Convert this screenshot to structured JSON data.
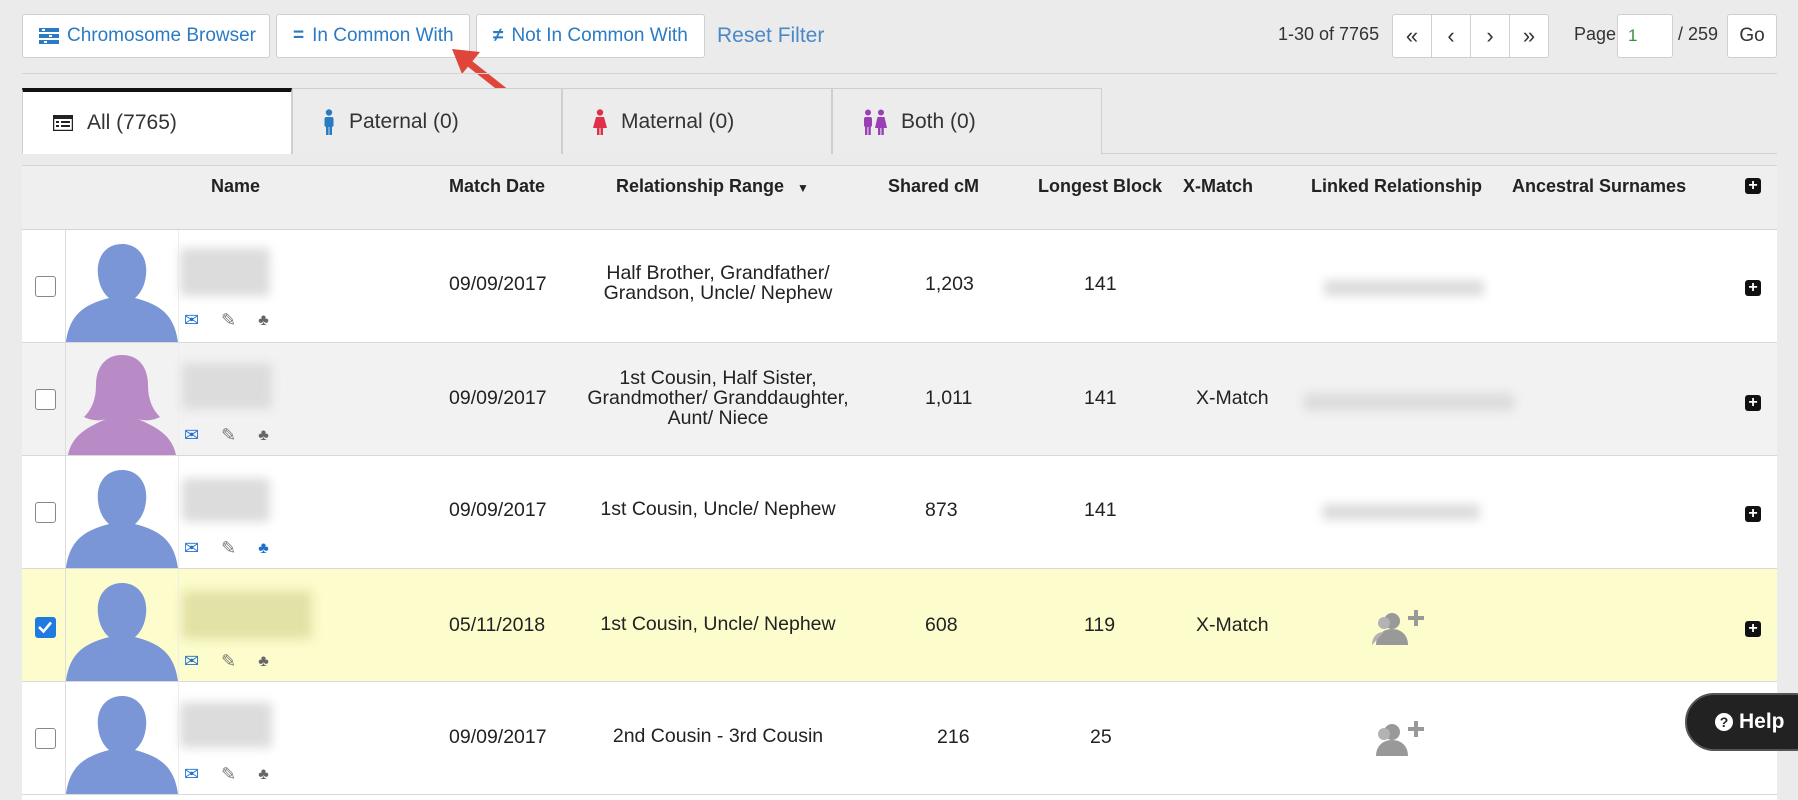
{
  "toolbar": {
    "chromosome_browser": "Chromosome Browser",
    "in_common_with": "In Common With",
    "not_in_common_with": "Not In Common With",
    "reset_filter": "Reset Filter"
  },
  "pagination": {
    "range": "1-30 of 7765",
    "first": "«",
    "prev": "‹",
    "next": "›",
    "last": "»",
    "page_label": "Page",
    "page_value": "1",
    "page_total": "/ 259",
    "go": "Go"
  },
  "tabs": [
    {
      "label": "All (7765)",
      "icon": "list-icon"
    },
    {
      "label": "Paternal (0)",
      "icon": "male-icon"
    },
    {
      "label": "Maternal (0)",
      "icon": "female-icon"
    },
    {
      "label": "Both (0)",
      "icon": "couple-icon"
    }
  ],
  "columns": {
    "name": "Name",
    "match_date": "Match Date",
    "relationship_range": "Relationship Range",
    "shared_cm": "Shared cM",
    "longest_block": "Longest Block",
    "x_match": "X-Match",
    "linked_relationship": "Linked Relationship",
    "ancestral_surnames": "Ancestral Surnames"
  },
  "rows": [
    {
      "checked": false,
      "avatar": "male-avatar",
      "date": "09/09/2017",
      "relationship": "Half Brother, Grandfather/ Grandson, Uncle/ Nephew",
      "shared_cm": "1,203",
      "longest_block": "141",
      "x_match": "",
      "linked": "blurred"
    },
    {
      "checked": false,
      "avatar": "female-avatar",
      "date": "09/09/2017",
      "relationship": "1st Cousin, Half Sister, Grandmother/ Granddaughter, Aunt/ Niece",
      "shared_cm": "1,011",
      "longest_block": "141",
      "x_match": "X-Match",
      "linked": "blurred"
    },
    {
      "checked": false,
      "avatar": "male-avatar",
      "date": "09/09/2017",
      "relationship": "1st Cousin, Uncle/ Nephew",
      "shared_cm": "873",
      "longest_block": "141",
      "x_match": "",
      "linked": "blurred"
    },
    {
      "checked": true,
      "avatar": "male-avatar",
      "date": "05/11/2018",
      "relationship": "1st Cousin, Uncle/ Nephew",
      "shared_cm": "608",
      "longest_block": "119",
      "x_match": "X-Match",
      "linked": "add-relationship-icon"
    },
    {
      "checked": false,
      "avatar": "male-avatar",
      "date": "09/09/2017",
      "relationship": "2nd Cousin - 3rd Cousin",
      "shared_cm": "216",
      "longest_block": "25",
      "x_match": "",
      "linked": "add-relationship-icon"
    }
  ],
  "help": "Help",
  "colors": {
    "link_blue": "#2a7bc4",
    "male_avatar": "#7b96d6",
    "female_avatar": "#b98bc6",
    "selected_row": "#fcfccc",
    "arrow_red": "#e0453a"
  }
}
